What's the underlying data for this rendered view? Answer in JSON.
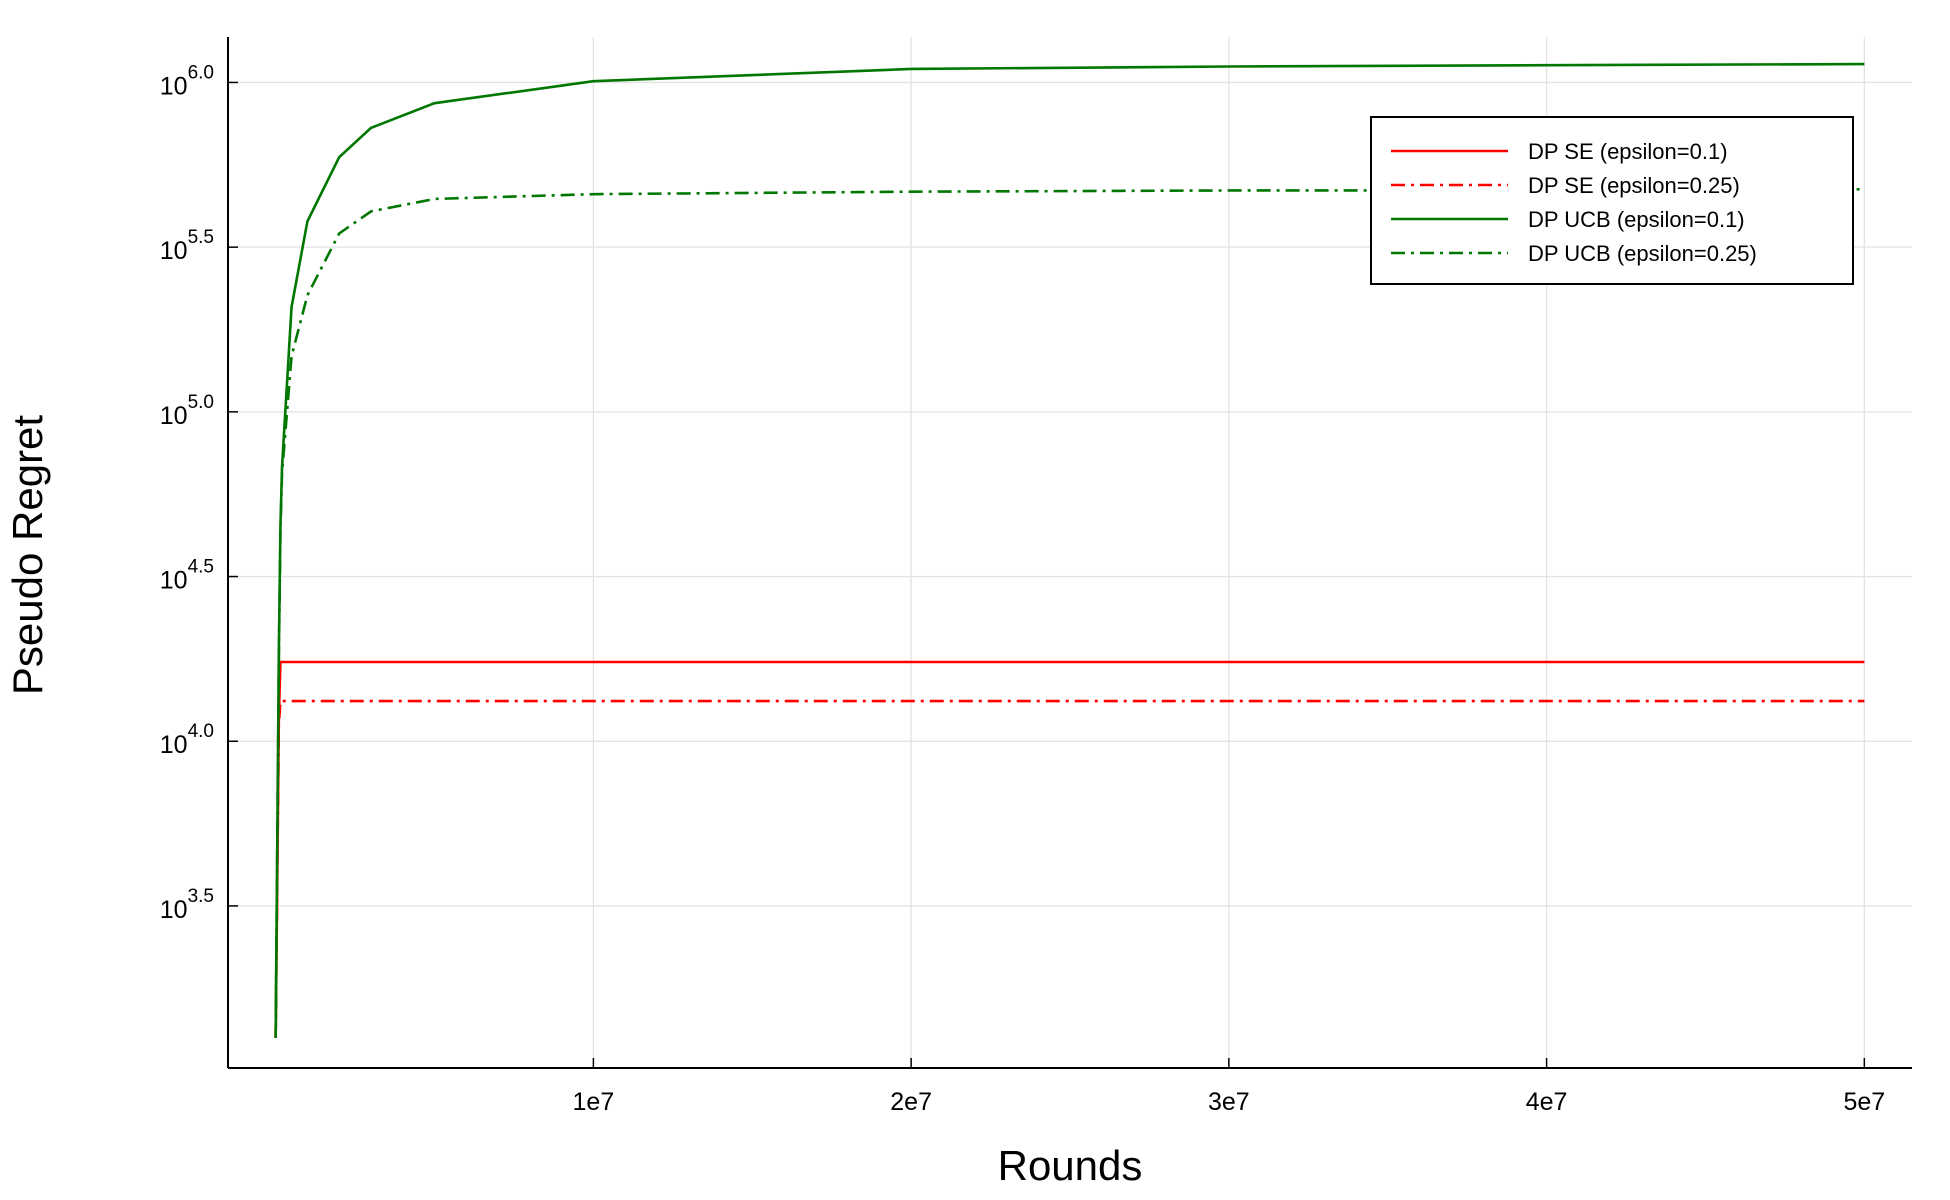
{
  "chart_data": {
    "type": "line",
    "xlabel": "Rounds",
    "ylabel": "Pseudo Regret",
    "x": [
      0,
      100000,
      150000,
      200000,
      500000,
      1000000,
      2000000,
      3000000,
      5000000,
      10000000,
      20000000,
      30000000,
      40000000,
      50000000
    ],
    "series": [
      {
        "name": "DP SE (epsilon=0.1)",
        "color": "#ff0000",
        "dash": "solid",
        "values": [
          1259,
          11860,
          17400,
          17400,
          17400,
          17400,
          17400,
          17400,
          17400,
          17400,
          17400,
          17400,
          17400,
          17400
        ]
      },
      {
        "name": "DP SE (epsilon=0.25)",
        "color": "#ff0000",
        "dash": "dashdot",
        "values": [
          1259,
          11200,
          13240,
          13240,
          13240,
          13240,
          13240,
          13240,
          13240,
          13240,
          13240,
          13240,
          13240,
          13240
        ]
      },
      {
        "name": "DP UCB (epsilon=0.1)",
        "color": "#007700",
        "dash": "solid",
        "values": [
          1259,
          18600,
          45000,
          68000,
          208000,
          379000,
          593000,
          728000,
          865000,
          1009000,
          1099000,
          1118000,
          1128000,
          1137000
        ]
      },
      {
        "name": "DP UCB (epsilon=0.25)",
        "color": "#007700",
        "dash": "dashdot",
        "values": [
          1259,
          18000,
          43000,
          65000,
          147600,
          226000,
          348000,
          406000,
          443000,
          458000,
          466000,
          470000,
          470000,
          474000
        ]
      }
    ],
    "xlim": [
      -1500000,
      51500000
    ],
    "xticks": [
      {
        "value": 10000000,
        "label": "1e7"
      },
      {
        "value": 20000000,
        "label": "2e7"
      },
      {
        "value": 30000000,
        "label": "3e7"
      },
      {
        "value": 40000000,
        "label": "4e7"
      },
      {
        "value": 50000000,
        "label": "5e7"
      }
    ],
    "ylim": [
      1018.6,
      1374000
    ],
    "ylog": true,
    "yticks": [
      {
        "value": 3162.28,
        "label": "10",
        "exponent": "3.5"
      },
      {
        "value": 10000,
        "label": "10",
        "exponent": "4.0"
      },
      {
        "value": 31622.8,
        "label": "10",
        "exponent": "4.5"
      },
      {
        "value": 100000,
        "label": "10",
        "exponent": "5.0"
      },
      {
        "value": 316227.8,
        "label": "10",
        "exponent": "5.5"
      },
      {
        "value": 1000000,
        "label": "10",
        "exponent": "6.0"
      }
    ],
    "grid": true,
    "legend": "top-right"
  }
}
